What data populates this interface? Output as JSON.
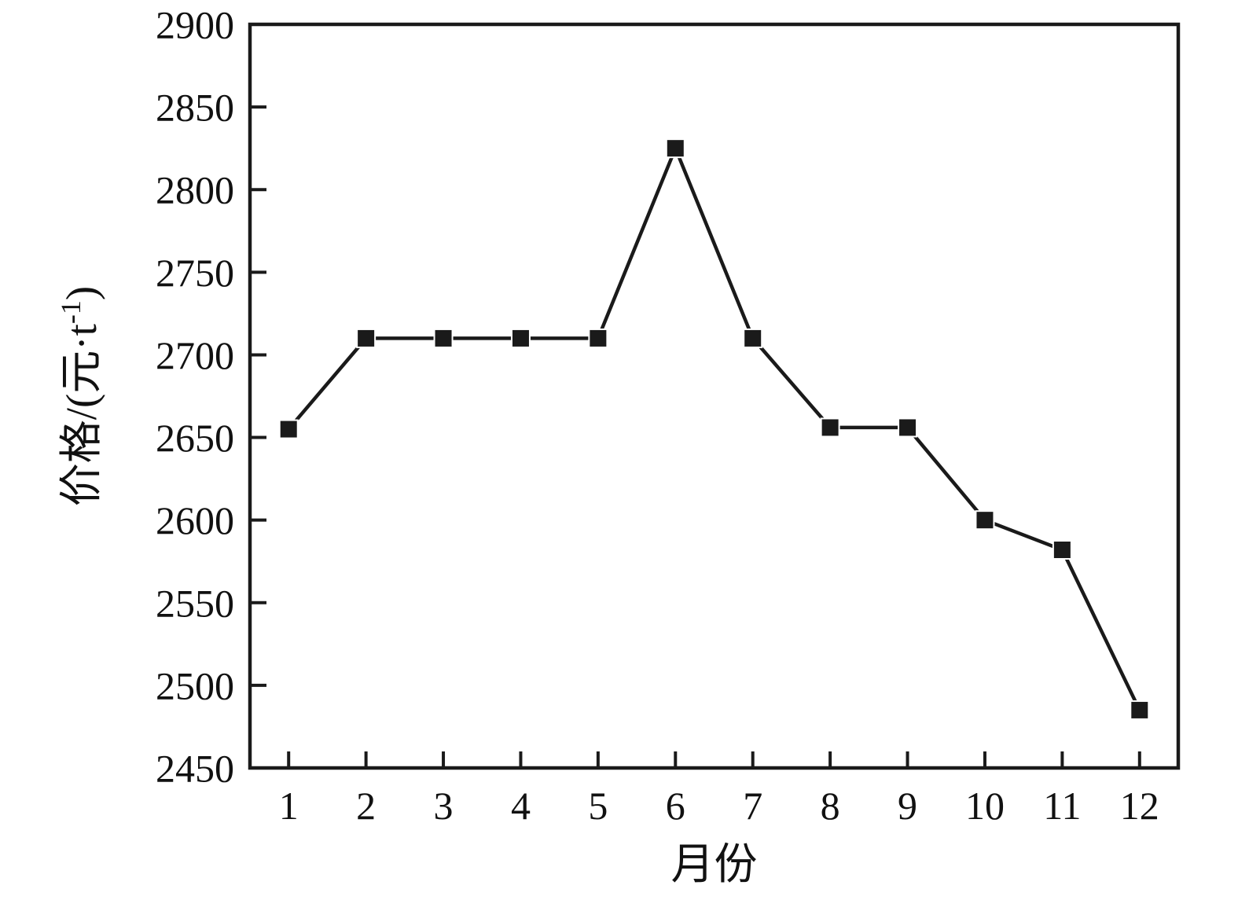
{
  "chart_data": {
    "type": "line",
    "title": "",
    "xlabel": "月份",
    "ylabel": "价格/(元·t⁻¹)",
    "ylabel_superscript": "-1",
    "categories": [
      "1",
      "2",
      "3",
      "4",
      "5",
      "6",
      "7",
      "8",
      "9",
      "10",
      "11",
      "12"
    ],
    "x": [
      1,
      2,
      3,
      4,
      5,
      6,
      7,
      8,
      9,
      10,
      11,
      12
    ],
    "series": [
      {
        "name": "价格",
        "values": [
          2655,
          2710,
          2710,
          2710,
          2710,
          2825,
          2710,
          2656,
          2656,
          2600,
          2582,
          2485
        ]
      }
    ],
    "ylim": [
      2450,
      2900
    ],
    "ytick_step": 50,
    "ytick_labels": [
      "2450",
      "2500",
      "2550",
      "2600",
      "2650",
      "2700",
      "2750",
      "2800",
      "2850",
      "2900"
    ],
    "grid": false,
    "legend_position": "none",
    "marker": "square",
    "line_color": "#1a1a1a",
    "marker_color": "#1a1a1a",
    "axis_color": "#1a1a1a",
    "background_color": "#ffffff"
  }
}
